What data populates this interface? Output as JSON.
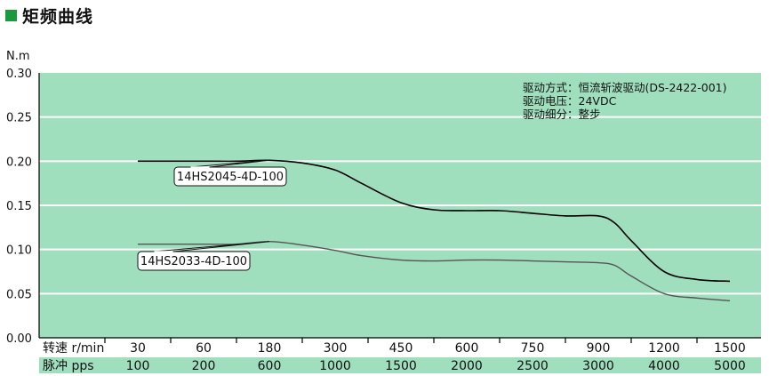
{
  "title": "矩频曲线",
  "colors": {
    "title_square": "#1a9a3c",
    "plot_bg": "#9fdfbe",
    "grid": "#ffffff",
    "series_1": "#000000",
    "series_2": "#555555",
    "pps_row_bg": "#9fdfbe"
  },
  "chart_data": {
    "type": "line",
    "ylabel": "N.m",
    "ylim": [
      0,
      0.3
    ],
    "yticks": [
      "0.00",
      "0.05",
      "0.10",
      "0.15",
      "0.20",
      "0.25",
      "0.30"
    ],
    "x_rows": [
      {
        "label": "转速 r/min",
        "values": [
          "30",
          "60",
          "180",
          "300",
          "450",
          "600",
          "750",
          "900",
          "1200",
          "1500"
        ]
      },
      {
        "label": "脉冲 pps",
        "values": [
          "100",
          "200",
          "600",
          "1000",
          "1500",
          "2000",
          "2500",
          "3000",
          "4000",
          "5000"
        ]
      }
    ],
    "notes": [
      "驱动方式：恒流斩波驱动(DS-2422-001)",
      "驱动电压：24VDC",
      "驱动细分：整步"
    ],
    "grid": true,
    "series": [
      {
        "name": "14HS2045-4D-100",
        "x": [
          100,
          200,
          400,
          600,
          800,
          1000,
          1200,
          1500,
          1750,
          2000,
          2250,
          2500,
          2750,
          3000,
          3250,
          3500,
          4000,
          4500,
          5000
        ],
        "y": [
          0.2,
          0.2,
          0.2,
          0.201,
          0.198,
          0.19,
          0.175,
          0.153,
          0.145,
          0.144,
          0.144,
          0.141,
          0.138,
          0.138,
          0.13,
          0.11,
          0.075,
          0.066,
          0.064
        ]
      },
      {
        "name": "14HS2033-4D-100",
        "x": [
          100,
          200,
          400,
          600,
          800,
          1000,
          1200,
          1500,
          1750,
          2000,
          2250,
          2500,
          2750,
          3000,
          3250,
          3500,
          4000,
          4500,
          5000
        ],
        "y": [
          0.106,
          0.106,
          0.106,
          0.109,
          0.105,
          0.099,
          0.093,
          0.088,
          0.087,
          0.088,
          0.088,
          0.087,
          0.086,
          0.085,
          0.082,
          0.07,
          0.05,
          0.045,
          0.042
        ]
      }
    ]
  }
}
